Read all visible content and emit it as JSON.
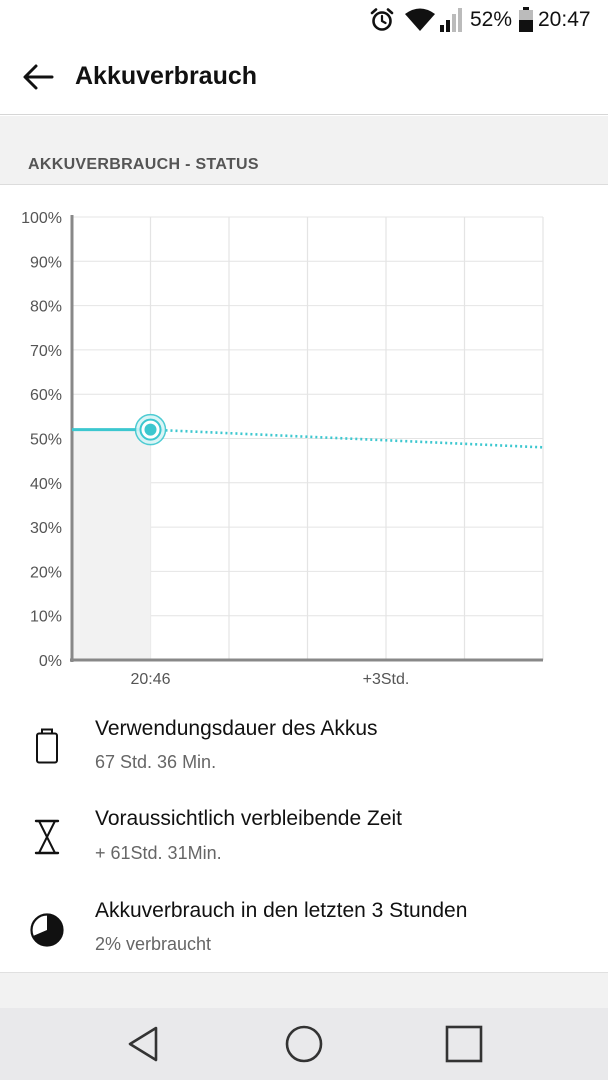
{
  "status_bar": {
    "battery_percent": "52%",
    "time": "20:47",
    "icons": [
      "alarm-icon",
      "wifi-icon",
      "cell-signal-icon",
      "battery-icon"
    ]
  },
  "app_bar": {
    "title": "Akkuverbrauch",
    "back_icon": "arrow-left-icon"
  },
  "section": {
    "title": "AKKUVERBRAUCH - STATUS"
  },
  "colors": {
    "accent": "#3cc7cf",
    "grid": "#e4e4e4",
    "axis": "#888888",
    "history_fill": "#f2f2f2"
  },
  "chart_data": {
    "type": "line",
    "title": "",
    "xlabel": "",
    "ylabel": "",
    "ylim": [
      0,
      100
    ],
    "y_ticks": [
      "0%",
      "10%",
      "20%",
      "30%",
      "40%",
      "50%",
      "60%",
      "70%",
      "80%",
      "90%",
      "100%"
    ],
    "x_tick_labels": [
      {
        "label": "20:46",
        "hours_from_now": 0
      },
      {
        "label": "+3Std.",
        "hours_from_now": 3
      }
    ],
    "xlim_hours": [
      -1,
      5
    ],
    "grid": true,
    "series": [
      {
        "style": "solid",
        "points": [
          [
            -1,
            52
          ],
          [
            0,
            52
          ]
        ]
      },
      {
        "style": "dotted",
        "points": [
          [
            0,
            52
          ],
          [
            5,
            48
          ]
        ]
      }
    ],
    "current_point": {
      "hours_from_now": 0,
      "value": 52
    }
  },
  "info_items": [
    {
      "icon": "battery-outline-icon",
      "title": "Verwendungsdauer des Akkus",
      "subtitle": "67 Std. 36 Min."
    },
    {
      "icon": "hourglass-icon",
      "title": "Voraussichtlich verbleibende Zeit",
      "subtitle": "+ 61Std. 31Min."
    },
    {
      "icon": "pie-usage-icon",
      "title": "Akkuverbrauch in den letzten 3 Stunden",
      "subtitle": "2% verbraucht"
    }
  ],
  "nav_bar": {
    "buttons": [
      "back-triangle-icon",
      "home-circle-icon",
      "recents-square-icon"
    ]
  }
}
